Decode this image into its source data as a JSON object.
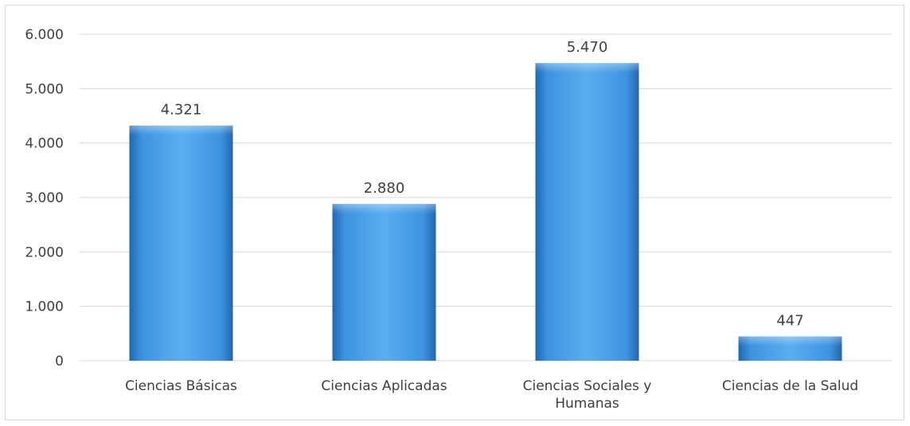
{
  "chart_data": {
    "type": "bar",
    "categories": [
      "Ciencias Básicas",
      "Ciencias Aplicadas",
      "Ciencias Sociales y Humanas",
      "Ciencias de la Salud"
    ],
    "category_label_lines": [
      [
        "Ciencias Básicas"
      ],
      [
        "Ciencias Aplicadas"
      ],
      [
        "Ciencias Sociales y",
        "Humanas"
      ],
      [
        "Ciencias de la Salud"
      ]
    ],
    "values": [
      4321,
      2880,
      5470,
      447
    ],
    "data_labels": [
      "4.321",
      "2.880",
      "5.470",
      "447"
    ],
    "ylim": [
      0,
      6000
    ],
    "yticks": [
      0,
      1000,
      2000,
      3000,
      4000,
      5000,
      6000
    ],
    "ytick_labels": [
      "0",
      "1.000",
      "2.000",
      "3.000",
      "4.000",
      "5.000",
      "6.000"
    ],
    "title": "",
    "xlabel": "",
    "ylabel": "",
    "grid": true,
    "legend": "none"
  },
  "colors": {
    "bar_light": "#5aaef0",
    "bar_mid": "#3d93e0",
    "bar_dark": "#2167b0",
    "grid": "#d9d9d9",
    "text": "#404040"
  }
}
